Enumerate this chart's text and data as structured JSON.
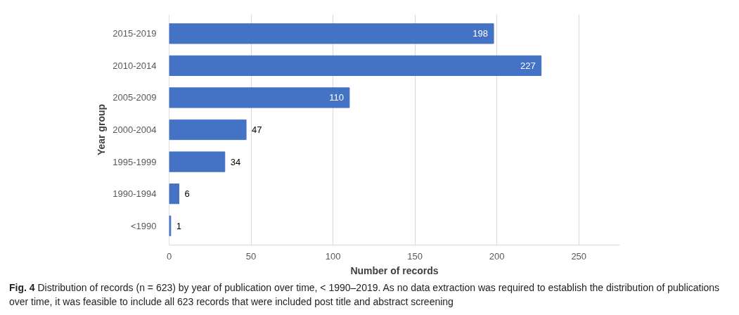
{
  "chart_data": {
    "type": "bar",
    "orientation": "horizontal",
    "xlabel": "Number of records",
    "ylabel": "Year group",
    "categories": [
      "2015-2019",
      "2010-2014",
      "2005-2009",
      "2000-2004",
      "1995-1999",
      "1990-1994",
      "<1990"
    ],
    "values": [
      198,
      227,
      110,
      47,
      34,
      6,
      1
    ],
    "color": "#4472c4",
    "xlim": [
      0,
      275
    ],
    "xticks": [
      0,
      50,
      100,
      150,
      200,
      250
    ],
    "grid": "x",
    "data_labels": true,
    "annotations": [
      "Fig. 4 Distribution of records (n = 623) by year of publication over time, < 1990–2019. As no data extraction was required to establish the distribution of publications over time, it was feasible to include all 623 records that were included post title and abstract screening"
    ]
  }
}
